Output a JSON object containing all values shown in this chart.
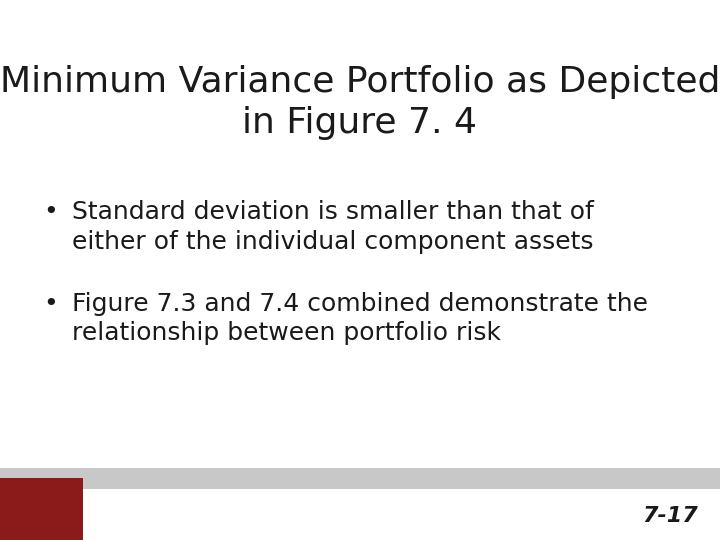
{
  "title_line1": "Minimum Variance Portfolio as Depicted",
  "title_line2": "in Figure 7. 4",
  "bullet1_line1": "Standard deviation is smaller than that of",
  "bullet1_line2": "either of the individual component assets",
  "bullet2_line1": "Figure 7.3 and 7.4 combined demonstrate the",
  "bullet2_line2": "relationship between portfolio risk",
  "slide_number": "7-17",
  "bg_color": "#ffffff",
  "title_color": "#1a1a1a",
  "body_color": "#1a1a1a",
  "footer_bar_color": "#c8c8c8",
  "footer_red_color": "#8b1a1a",
  "title_fontsize": 26,
  "body_fontsize": 18,
  "slide_num_fontsize": 16
}
